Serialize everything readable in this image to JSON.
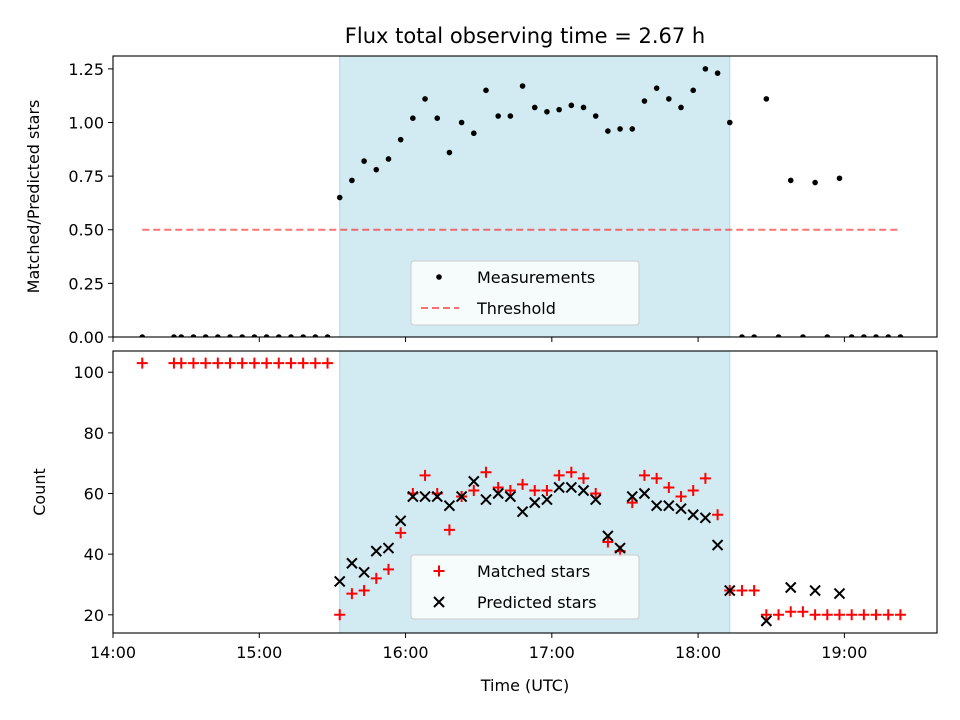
{
  "title": "Flux total observing time = 2.67 h",
  "colors": {
    "span": "#add8e6",
    "measurement": "#000000",
    "threshold": "#ff0000",
    "matched": "#ff0000",
    "predicted": "#000000"
  },
  "chart_data": [
    {
      "type": "scatter",
      "panel": "top",
      "ylabel": "Matched/Predicted stars",
      "xlim": [
        "14:00",
        "19:38"
      ],
      "ylim": [
        0.0,
        1.31
      ],
      "yticks": [
        0.0,
        0.25,
        0.5,
        0.75,
        1.0,
        1.25
      ],
      "ytick_labels": [
        "0.00",
        "0.25",
        "0.50",
        "0.75",
        "1.00",
        "1.25"
      ],
      "shaded_span": [
        "15:33",
        "18:13"
      ],
      "legend": {
        "placement": "lower-center",
        "entries": [
          "Measurements",
          "Threshold"
        ]
      },
      "series": [
        {
          "name": "Measurements",
          "marker": "dot",
          "points": [
            [
              "14:12",
              0.0
            ],
            [
              "14:25",
              0.0
            ],
            [
              "14:28",
              0.0
            ],
            [
              "14:33",
              0.0
            ],
            [
              "14:38",
              0.0
            ],
            [
              "14:43",
              0.0
            ],
            [
              "14:48",
              0.0
            ],
            [
              "14:53",
              0.0
            ],
            [
              "14:58",
              0.0
            ],
            [
              "15:03",
              0.0
            ],
            [
              "15:08",
              0.0
            ],
            [
              "15:13",
              0.0
            ],
            [
              "15:18",
              0.0
            ],
            [
              "15:23",
              0.0
            ],
            [
              "15:28",
              0.0
            ],
            [
              "15:33",
              0.65
            ],
            [
              "15:38",
              0.73
            ],
            [
              "15:43",
              0.82
            ],
            [
              "15:48",
              0.78
            ],
            [
              "15:53",
              0.83
            ],
            [
              "15:58",
              0.92
            ],
            [
              "16:03",
              1.02
            ],
            [
              "16:08",
              1.11
            ],
            [
              "16:13",
              1.02
            ],
            [
              "16:18",
              0.86
            ],
            [
              "16:23",
              1.0
            ],
            [
              "16:28",
              0.95
            ],
            [
              "16:33",
              1.15
            ],
            [
              "16:38",
              1.03
            ],
            [
              "16:43",
              1.03
            ],
            [
              "16:48",
              1.17
            ],
            [
              "16:53",
              1.07
            ],
            [
              "16:58",
              1.05
            ],
            [
              "17:03",
              1.06
            ],
            [
              "17:08",
              1.08
            ],
            [
              "17:13",
              1.07
            ],
            [
              "17:18",
              1.03
            ],
            [
              "17:23",
              0.96
            ],
            [
              "17:28",
              0.97
            ],
            [
              "17:33",
              0.97
            ],
            [
              "17:38",
              1.1
            ],
            [
              "17:43",
              1.16
            ],
            [
              "17:48",
              1.11
            ],
            [
              "17:53",
              1.07
            ],
            [
              "17:58",
              1.15
            ],
            [
              "18:03",
              1.25
            ],
            [
              "18:08",
              1.23
            ],
            [
              "18:13",
              1.0
            ],
            [
              "18:18",
              0.0
            ],
            [
              "18:23",
              0.0
            ],
            [
              "18:28",
              1.11
            ],
            [
              "18:33",
              0.0
            ],
            [
              "18:38",
              0.73
            ],
            [
              "18:43",
              0.0
            ],
            [
              "18:48",
              0.72
            ],
            [
              "18:53",
              0.0
            ],
            [
              "18:58",
              0.74
            ],
            [
              "19:03",
              0.0
            ],
            [
              "19:08",
              0.0
            ],
            [
              "19:13",
              0.0
            ],
            [
              "19:18",
              0.0
            ],
            [
              "19:23",
              0.0
            ]
          ]
        },
        {
          "name": "Threshold",
          "marker": "dashed-line",
          "points": [
            [
              "14:12",
              0.5
            ],
            [
              "19:23",
              0.5
            ]
          ]
        }
      ]
    },
    {
      "type": "scatter",
      "panel": "bottom",
      "xlabel": "Time (UTC)",
      "ylabel": "Count",
      "xlim": [
        "14:00",
        "19:38"
      ],
      "ylim": [
        14,
        107
      ],
      "xticks": [
        "14:00",
        "15:00",
        "16:00",
        "17:00",
        "18:00",
        "19:00"
      ],
      "yticks": [
        20,
        40,
        60,
        80,
        100
      ],
      "shaded_span": [
        "15:33",
        "18:13"
      ],
      "legend": {
        "placement": "lower-center",
        "entries": [
          "Matched stars",
          "Predicted stars"
        ]
      },
      "series": [
        {
          "name": "Matched stars",
          "marker": "plus",
          "points": [
            [
              "14:12",
              103
            ],
            [
              "14:25",
              103
            ],
            [
              "14:28",
              103
            ],
            [
              "14:33",
              103
            ],
            [
              "14:38",
              103
            ],
            [
              "14:43",
              103
            ],
            [
              "14:48",
              103
            ],
            [
              "14:53",
              103
            ],
            [
              "14:58",
              103
            ],
            [
              "15:03",
              103
            ],
            [
              "15:08",
              103
            ],
            [
              "15:13",
              103
            ],
            [
              "15:18",
              103
            ],
            [
              "15:23",
              103
            ],
            [
              "15:28",
              103
            ],
            [
              "15:33",
              20
            ],
            [
              "15:38",
              27
            ],
            [
              "15:43",
              28
            ],
            [
              "15:48",
              32
            ],
            [
              "15:53",
              35
            ],
            [
              "15:58",
              47
            ],
            [
              "16:03",
              60
            ],
            [
              "16:08",
              66
            ],
            [
              "16:13",
              60
            ],
            [
              "16:18",
              48
            ],
            [
              "16:23",
              59
            ],
            [
              "16:28",
              61
            ],
            [
              "16:33",
              67
            ],
            [
              "16:38",
              62
            ],
            [
              "16:43",
              61
            ],
            [
              "16:48",
              63
            ],
            [
              "16:53",
              61
            ],
            [
              "16:58",
              61
            ],
            [
              "17:03",
              66
            ],
            [
              "17:08",
              67
            ],
            [
              "17:13",
              65
            ],
            [
              "17:18",
              60
            ],
            [
              "17:23",
              44
            ],
            [
              "17:28",
              41
            ],
            [
              "17:33",
              57
            ],
            [
              "17:38",
              66
            ],
            [
              "17:43",
              65
            ],
            [
              "17:48",
              62
            ],
            [
              "17:53",
              59
            ],
            [
              "17:58",
              61
            ],
            [
              "18:03",
              65
            ],
            [
              "18:08",
              53
            ],
            [
              "18:13",
              28
            ],
            [
              "18:18",
              28
            ],
            [
              "18:23",
              28
            ],
            [
              "18:28",
              20
            ],
            [
              "18:33",
              20
            ],
            [
              "18:38",
              21
            ],
            [
              "18:43",
              21
            ],
            [
              "18:48",
              20
            ],
            [
              "18:53",
              20
            ],
            [
              "18:58",
              20
            ],
            [
              "19:03",
              20
            ],
            [
              "19:08",
              20
            ],
            [
              "19:13",
              20
            ],
            [
              "19:18",
              20
            ],
            [
              "19:23",
              20
            ]
          ]
        },
        {
          "name": "Predicted stars",
          "marker": "x",
          "points": [
            [
              "15:33",
              31
            ],
            [
              "15:38",
              37
            ],
            [
              "15:43",
              34
            ],
            [
              "15:48",
              41
            ],
            [
              "15:53",
              42
            ],
            [
              "15:58",
              51
            ],
            [
              "16:03",
              59
            ],
            [
              "16:08",
              59
            ],
            [
              "16:13",
              59
            ],
            [
              "16:18",
              56
            ],
            [
              "16:23",
              59
            ],
            [
              "16:28",
              64
            ],
            [
              "16:33",
              58
            ],
            [
              "16:38",
              60
            ],
            [
              "16:43",
              59
            ],
            [
              "16:48",
              54
            ],
            [
              "16:53",
              57
            ],
            [
              "16:58",
              58
            ],
            [
              "17:03",
              62
            ],
            [
              "17:08",
              62
            ],
            [
              "17:13",
              61
            ],
            [
              "17:18",
              58
            ],
            [
              "17:23",
              46
            ],
            [
              "17:28",
              42
            ],
            [
              "17:33",
              59
            ],
            [
              "17:38",
              60
            ],
            [
              "17:43",
              56
            ],
            [
              "17:48",
              56
            ],
            [
              "17:53",
              55
            ],
            [
              "17:58",
              53
            ],
            [
              "18:03",
              52
            ],
            [
              "18:08",
              43
            ],
            [
              "18:13",
              28
            ],
            [
              "18:28",
              18
            ],
            [
              "18:38",
              29
            ],
            [
              "18:48",
              28
            ],
            [
              "18:58",
              27
            ]
          ]
        }
      ]
    }
  ]
}
